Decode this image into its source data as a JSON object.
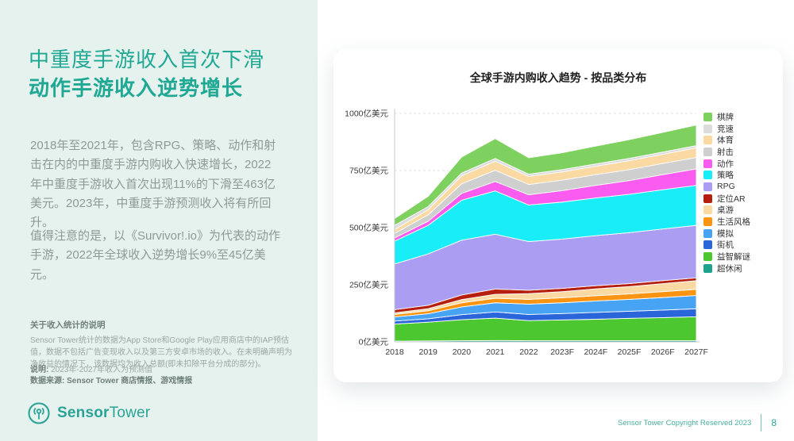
{
  "sidebar": {
    "title_line1": "中重度手游收入首次下滑",
    "title_line2": "动作手游收入逆势增长",
    "paragraph1": "2018年至2021年，包含RPG、策略、动作和射击在内的中重度手游内购收入快速增长，2022年中重度手游收入首次出现11%的下滑至463亿美元。2023年，中重度手游预测收入将有所回升。",
    "paragraph2": "值得注意的是，以《Survivor!.io》为代表的动作手游，2022年全球收入逆势增长9%至45亿美元。",
    "note_title": "关于收入统计的说明",
    "note_body": "Sensor Tower统计的数据为App Store和Google Play应用商店中的IAP预估值，数据不包括广告变现收入以及第三方安卓市场的收入。在未明确声明为净收益的情况下，该数据均为收入总额(即未扣除平台分成的部分)。",
    "note_label": "说明:",
    "note_value": " 2023年-2027年收入为预测值",
    "source_line": "数据来源: Sensor Tower 商店情报、游戏情报",
    "logo_bold": "Sensor",
    "logo_light": "Tower"
  },
  "footer": {
    "copyright": "Sensor Tower Copyright Reserved 2023",
    "page_number": "8"
  },
  "chart_data": {
    "type": "area",
    "stacked": true,
    "title": "全球手游内购收入趋势 - 按品类分布",
    "x": [
      "2018",
      "2019",
      "2020",
      "2021",
      "2022",
      "2023F",
      "2024F",
      "2025F",
      "2026F",
      "2027F"
    ],
    "y_unit": "亿美元",
    "ylim": [
      0,
      1000
    ],
    "y_ticks": [
      0,
      250,
      500,
      750,
      1000
    ],
    "y_tick_labels": [
      "0亿美元",
      "250亿美元",
      "500亿美元",
      "750亿美元",
      "1000亿美元"
    ],
    "grid": "dashed-horizontal",
    "legend_position": "right",
    "stack_note": "series listed in legend order (top of stack first); stacked bottom-to-top in reverse order",
    "series": [
      {
        "name": "棋牌",
        "color": "#7fd15f",
        "values": [
          30,
          45,
          70,
          87,
          72,
          74,
          78,
          82,
          86,
          90
        ]
      },
      {
        "name": "竞速",
        "color": "#dcdcdc",
        "values": [
          18,
          14,
          12,
          12,
          10,
          10,
          10,
          10,
          10,
          10
        ]
      },
      {
        "name": "体育",
        "color": "#fbd9a3",
        "values": [
          17,
          22,
          35,
          40,
          35,
          36,
          37,
          39,
          40,
          42
        ]
      },
      {
        "name": "射击",
        "color": "#cfcfcf",
        "values": [
          20,
          28,
          42,
          49,
          45,
          46,
          47,
          48,
          49,
          50
        ]
      },
      {
        "name": "动作",
        "color": "#fb5cf0",
        "values": [
          14,
          18,
          30,
          41,
          45,
          50,
          55,
          60,
          66,
          72
        ]
      },
      {
        "name": "策略",
        "color": "#19eef8",
        "values": [
          100,
          125,
          175,
          190,
          160,
          162,
          165,
          168,
          172,
          175
        ]
      },
      {
        "name": "RPG",
        "color": "#ab9df2",
        "values": [
          200,
          225,
          240,
          240,
          213,
          216,
          219,
          223,
          226,
          230
        ]
      },
      {
        "name": "定位AR",
        "color": "#b51f10",
        "values": [
          14,
          15,
          20,
          23,
          15,
          14,
          14,
          13,
          13,
          12
        ]
      },
      {
        "name": "桌游",
        "color": "#fbd9a3",
        "values": [
          7,
          9,
          14,
          17,
          25,
          27,
          30,
          32,
          35,
          38
        ]
      },
      {
        "name": "生活风格",
        "color": "#fb9313",
        "values": [
          11,
          13,
          18,
          20,
          21,
          22,
          23,
          24,
          26,
          27
        ]
      },
      {
        "name": "模拟",
        "color": "#47a3f3",
        "values": [
          18,
          22,
          34,
          40,
          45,
          47,
          50,
          52,
          55,
          58
        ]
      },
      {
        "name": "街机",
        "color": "#2a66d9",
        "values": [
          13,
          15,
          22,
          27,
          27,
          28,
          30,
          31,
          33,
          35
        ]
      },
      {
        "name": "益智解谜",
        "color": "#4cc72f",
        "values": [
          75,
          82,
          92,
          98,
          88,
          91,
          94,
          98,
          101,
          105
        ]
      },
      {
        "name": "超休闲",
        "color": "#1ea28f",
        "values": [
          3,
          4,
          5,
          6,
          5,
          5,
          5,
          5,
          5,
          5
        ]
      }
    ]
  }
}
